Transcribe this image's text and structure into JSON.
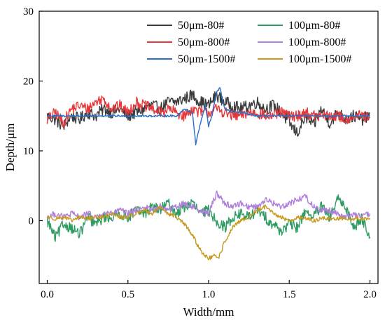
{
  "chart_data": {
    "type": "line",
    "title": "",
    "xlabel": "Width/mm",
    "ylabel": "Depth/μm",
    "xlim": [
      -0.05,
      2.05
    ],
    "ylim": [
      -9,
      30
    ],
    "xticks": [
      "0.0",
      "0.5",
      "1.0",
      "1.5",
      "2.0"
    ],
    "yticks": [
      "0",
      "10",
      "20",
      "30"
    ],
    "grid": false,
    "legend_position": "top-right",
    "series": [
      {
        "name": "50μm-80#",
        "color": "#3c3c3c",
        "x": [
          0,
          0.05,
          0.1,
          0.15,
          0.2,
          0.25,
          0.3,
          0.35,
          0.4,
          0.45,
          0.5,
          0.55,
          0.6,
          0.65,
          0.7,
          0.75,
          0.8,
          0.85,
          0.9,
          0.95,
          1.0,
          1.05,
          1.1,
          1.15,
          1.2,
          1.25,
          1.3,
          1.35,
          1.4,
          1.45,
          1.5,
          1.55,
          1.6,
          1.65,
          1.7,
          1.75,
          1.8,
          1.85,
          1.9,
          1.95,
          2.0
        ],
        "y": [
          15,
          14.5,
          13.5,
          15,
          14.5,
          15.5,
          15,
          16,
          15.5,
          16,
          15,
          15.5,
          16,
          16.5,
          16,
          17,
          17,
          17.5,
          18,
          17,
          16.5,
          18,
          17,
          16.5,
          16,
          16.5,
          17,
          16,
          16.5,
          15.5,
          14,
          12.5,
          15,
          13.5,
          16,
          14,
          15.5,
          14.5,
          15,
          14.5,
          15
        ]
      },
      {
        "name": "50μm-800#",
        "color": "#e8373a",
        "x": [
          0,
          0.05,
          0.1,
          0.15,
          0.2,
          0.25,
          0.3,
          0.35,
          0.4,
          0.45,
          0.5,
          0.55,
          0.6,
          0.65,
          0.7,
          0.75,
          0.8,
          0.85,
          0.9,
          0.95,
          1.0,
          1.05,
          1.1,
          1.15,
          1.2,
          1.25,
          1.3,
          1.35,
          1.4,
          1.45,
          1.5,
          1.55,
          1.6,
          1.65,
          1.7,
          1.75,
          1.8,
          1.85,
          1.9,
          1.95,
          2.0
        ],
        "y": [
          14.5,
          15.5,
          14,
          16,
          16.5,
          16,
          17,
          17.5,
          16,
          16.5,
          15.5,
          17,
          16.5,
          16,
          15.5,
          16,
          15.5,
          15,
          16,
          15.5,
          15.5,
          16,
          15.5,
          15,
          15,
          15.5,
          15.5,
          15,
          15,
          15.5,
          15,
          15,
          15.5,
          15,
          15,
          15,
          15,
          14.5,
          15,
          15,
          14.5
        ]
      },
      {
        "name": "50μm-1500#",
        "color": "#2a6fc4",
        "x": [
          0,
          0.1,
          0.2,
          0.3,
          0.4,
          0.5,
          0.6,
          0.7,
          0.8,
          0.85,
          0.9,
          0.92,
          0.95,
          0.98,
          1.0,
          1.02,
          1.05,
          1.07,
          1.1,
          1.15,
          1.2,
          1.3,
          1.4,
          1.5,
          1.6,
          1.7,
          1.8,
          1.9,
          2.0
        ],
        "y": [
          15,
          15,
          15,
          15,
          15,
          15,
          15,
          15,
          15,
          16,
          15.5,
          11,
          14,
          16.5,
          13.5,
          15,
          18.5,
          19,
          16,
          15.5,
          15.5,
          15,
          15,
          15,
          15,
          15,
          15,
          15,
          15
        ]
      },
      {
        "name": "100μm-80#",
        "color": "#2e9b62",
        "x": [
          0,
          0.05,
          0.1,
          0.15,
          0.2,
          0.25,
          0.3,
          0.35,
          0.4,
          0.45,
          0.5,
          0.55,
          0.6,
          0.65,
          0.7,
          0.75,
          0.8,
          0.85,
          0.9,
          0.95,
          1.0,
          1.05,
          1.1,
          1.15,
          1.2,
          1.25,
          1.3,
          1.35,
          1.4,
          1.45,
          1.5,
          1.55,
          1.6,
          1.65,
          1.7,
          1.75,
          1.8,
          1.85,
          1.9,
          1.95,
          2.0
        ],
        "y": [
          0,
          -2.5,
          -0.5,
          -1,
          -2,
          0.5,
          -0.5,
          0.5,
          0.5,
          1,
          0.5,
          1.5,
          1,
          2,
          1.5,
          2.5,
          1,
          2,
          2.5,
          1,
          1.5,
          0,
          -1,
          0.5,
          1,
          0.5,
          1.5,
          0.5,
          -0.5,
          -1.5,
          -0.5,
          -1,
          1.5,
          0.5,
          2,
          0.5,
          3,
          2,
          -1,
          0.5,
          -2.5
        ]
      },
      {
        "name": "100μm-800#",
        "color": "#b07fdc",
        "x": [
          0,
          0.05,
          0.1,
          0.15,
          0.2,
          0.25,
          0.3,
          0.35,
          0.4,
          0.45,
          0.5,
          0.55,
          0.6,
          0.65,
          0.7,
          0.75,
          0.8,
          0.85,
          0.9,
          0.95,
          1.0,
          1.05,
          1.1,
          1.15,
          1.2,
          1.25,
          1.3,
          1.35,
          1.4,
          1.45,
          1.5,
          1.55,
          1.6,
          1.65,
          1.7,
          1.75,
          1.8,
          1.85,
          1.9,
          1.95,
          2.0
        ],
        "y": [
          0.5,
          1,
          0.5,
          1,
          0.5,
          1,
          0.5,
          1,
          1,
          1.5,
          1,
          1.5,
          2,
          1.5,
          2,
          1.5,
          2,
          2.5,
          2,
          1.5,
          1,
          4,
          2.5,
          2,
          2.5,
          2,
          2,
          3,
          2.5,
          2,
          2.5,
          3,
          3.5,
          2,
          1.5,
          1.5,
          1,
          0.5,
          1,
          0.5,
          1
        ]
      },
      {
        "name": "100μm-1500#",
        "color": "#c7991f",
        "x": [
          0,
          0.05,
          0.1,
          0.15,
          0.2,
          0.25,
          0.3,
          0.35,
          0.4,
          0.45,
          0.5,
          0.55,
          0.6,
          0.65,
          0.7,
          0.75,
          0.8,
          0.85,
          0.9,
          0.93,
          0.96,
          1.0,
          1.03,
          1.06,
          1.1,
          1.15,
          1.2,
          1.25,
          1.3,
          1.35,
          1.4,
          1.45,
          1.5,
          1.55,
          1.6,
          1.65,
          1.7,
          1.8,
          1.9,
          2.0
        ],
        "y": [
          0.5,
          0.3,
          0.5,
          0,
          0.5,
          0.3,
          0.5,
          0.5,
          1,
          0.5,
          0.5,
          1,
          1.5,
          1,
          2,
          1,
          0.5,
          -0.5,
          -2,
          -3.5,
          -4.5,
          -5.5,
          -5,
          -5.5,
          -3,
          -1,
          0,
          0.5,
          1.5,
          2,
          1,
          0.5,
          0,
          0.5,
          0.3,
          0,
          0.3,
          0.3,
          0.3,
          0.3
        ]
      }
    ]
  }
}
